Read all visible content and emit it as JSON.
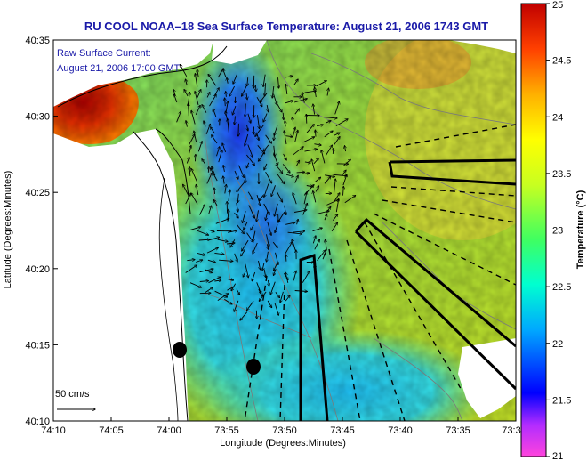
{
  "title": "RU COOL  NOAA–18  Sea Surface Temperature:  August 21, 2006 1743 GMT",
  "current_label_line1": "Raw Surface Current:",
  "current_label_line2": "August 21, 2006 17:00 GMT",
  "scale_label": "50 cm/s",
  "xlabel": "Longitude (Degrees:Minutes)",
  "ylabel": "Latitude (Degrees:Minutes)",
  "x_ticks": [
    "74:10",
    "74:05",
    "74:00",
    "73:55",
    "73:50",
    "73:45",
    "73:40",
    "73:35",
    "73:3"
  ],
  "y_ticks": [
    "40:35",
    "40:30",
    "40:25",
    "40:20",
    "40:15",
    "40:10"
  ],
  "colorbar": {
    "title": "Temperature (°C)",
    "range": [
      21,
      25
    ],
    "ticks": [
      "25",
      "24.5",
      "24",
      "23.5",
      "23",
      "22.5",
      "22",
      "21.5",
      "21"
    ],
    "colors": [
      "#ff44dd",
      "#0000ff",
      "#00e0ff",
      "#00ff80",
      "#ffff00",
      "#ff7700",
      "#cc0000"
    ]
  },
  "colors": {
    "title": "#1a1aa8",
    "land": "#ffffff",
    "coast": "#000000"
  }
}
